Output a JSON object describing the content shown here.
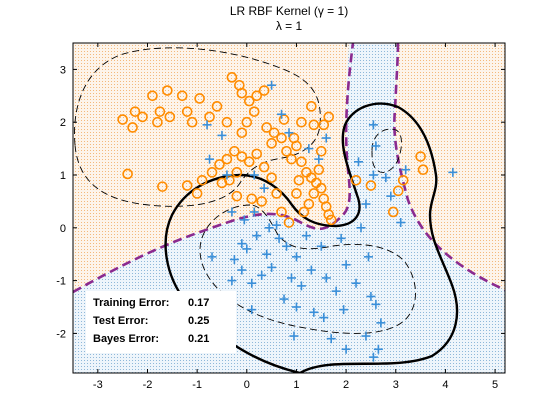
{
  "chart_data": {
    "type": "scatter",
    "title": "LR RBF Kernel (γ = 1)",
    "subtitle": "λ = 1",
    "xlim": [
      -3.5,
      5.2
    ],
    "ylim": [
      -2.75,
      3.5
    ],
    "xticks": [
      -3,
      -2,
      -1,
      0,
      1,
      2,
      3,
      4,
      5
    ],
    "yticks": [
      -2,
      -1,
      0,
      1,
      2,
      3
    ],
    "grid": false,
    "legend": "none",
    "colors": {
      "class_orange": "#ff8c00",
      "class_blue": "#3a8fd9",
      "region_orange": "#fdebd6",
      "region_blue": "#d6e6f3",
      "decision_boundary": "#000000",
      "bayes_boundary": "#8b2a8f"
    },
    "series": [
      {
        "marker": "circle",
        "color": "#ff8c00",
        "points": [
          [
            -2.4,
            1.02
          ],
          [
            -2.5,
            2.05
          ],
          [
            -2.25,
            2.2
          ],
          [
            -2.3,
            1.9
          ],
          [
            -2.1,
            2.1
          ],
          [
            -1.9,
            2.5
          ],
          [
            -1.8,
            2.0
          ],
          [
            -1.75,
            2.2
          ],
          [
            -1.6,
            2.6
          ],
          [
            -1.55,
            2.1
          ],
          [
            -1.7,
            0.78
          ],
          [
            -1.3,
            2.5
          ],
          [
            -1.2,
            2.2
          ],
          [
            -1.1,
            2.0
          ],
          [
            -0.95,
            2.45
          ],
          [
            -0.75,
            2.1
          ],
          [
            -0.6,
            2.3
          ],
          [
            -0.4,
            2.0
          ],
          [
            -0.3,
            2.85
          ],
          [
            -0.15,
            2.7
          ],
          [
            -0.1,
            2.55
          ],
          [
            0.05,
            2.4
          ],
          [
            0.2,
            2.5
          ],
          [
            0.35,
            2.6
          ],
          [
            0.15,
            2.2
          ],
          [
            0.0,
            2.0
          ],
          [
            -0.1,
            1.8
          ],
          [
            -0.25,
            1.45
          ],
          [
            -0.4,
            1.3
          ],
          [
            -0.55,
            1.2
          ],
          [
            -0.7,
            1.05
          ],
          [
            -0.9,
            0.9
          ],
          [
            -1.2,
            0.8
          ],
          [
            -0.35,
            0.9
          ],
          [
            -0.2,
            1.05
          ],
          [
            -0.1,
            1.35
          ],
          [
            0.05,
            1.25
          ],
          [
            0.2,
            1.4
          ],
          [
            0.35,
            1.15
          ],
          [
            0.5,
            1.6
          ],
          [
            0.55,
            1.8
          ],
          [
            0.7,
            1.7
          ],
          [
            0.8,
            1.45
          ],
          [
            0.9,
            1.3
          ],
          [
            1.0,
            1.55
          ],
          [
            1.1,
            1.25
          ],
          [
            1.2,
            1.05
          ],
          [
            1.3,
            0.95
          ],
          [
            1.4,
            0.85
          ],
          [
            1.5,
            0.75
          ],
          [
            1.55,
            0.55
          ],
          [
            1.6,
            0.4
          ],
          [
            1.65,
            0.25
          ],
          [
            1.7,
            0.15
          ],
          [
            1.45,
            1.1
          ],
          [
            1.35,
            0.65
          ],
          [
            1.25,
            0.45
          ],
          [
            1.15,
            0.3
          ],
          [
            1.05,
            0.9
          ],
          [
            0.95,
            1.7
          ],
          [
            1.1,
            2.0
          ],
          [
            0.75,
            2.05
          ],
          [
            1.35,
            1.95
          ],
          [
            1.55,
            1.95
          ],
          [
            1.3,
            2.3
          ],
          [
            1.65,
            2.1
          ],
          [
            1.5,
            1.45
          ],
          [
            2.2,
            0.9
          ],
          [
            2.5,
            0.8
          ],
          [
            2.95,
            0.3
          ],
          [
            3.05,
            0.7
          ],
          [
            3.15,
            0.9
          ],
          [
            3.5,
            1.35
          ],
          [
            3.55,
            1.1
          ],
          [
            -0.2,
            0.6
          ],
          [
            0.1,
            0.55
          ],
          [
            0.3,
            0.5
          ],
          [
            0.6,
            0.65
          ],
          [
            0.7,
            0.3
          ],
          [
            0.85,
            0.1
          ],
          [
            -0.5,
            0.85
          ],
          [
            -1.0,
            0.65
          ],
          [
            0.4,
            1.9
          ],
          [
            1.0,
            0.65
          ],
          [
            0.5,
            0.95
          ]
        ]
      },
      {
        "marker": "plus",
        "color": "#3a8fd9",
        "points": [
          [
            -0.8,
            1.95
          ],
          [
            -0.5,
            1.75
          ],
          [
            -0.75,
            1.3
          ],
          [
            -0.3,
            0.3
          ],
          [
            -0.05,
            0.15
          ],
          [
            0.15,
            0.3
          ],
          [
            0.45,
            0.0
          ],
          [
            0.6,
            0.05
          ],
          [
            0.5,
            2.7
          ],
          [
            0.7,
            2.15
          ],
          [
            0.85,
            1.8
          ],
          [
            1.25,
            1.5
          ],
          [
            1.45,
            1.3
          ],
          [
            1.6,
            1.7
          ],
          [
            2.25,
            1.25
          ],
          [
            2.55,
            1.0
          ],
          [
            2.6,
            1.55
          ],
          [
            2.55,
            1.95
          ],
          [
            2.8,
            0.95
          ],
          [
            3.2,
            1.1
          ],
          [
            4.15,
            1.05
          ],
          [
            2.4,
            0.45
          ],
          [
            2.9,
            0.6
          ],
          [
            3.1,
            0.1
          ],
          [
            -0.1,
            -0.3
          ],
          [
            -0.7,
            -0.55
          ],
          [
            -0.25,
            -0.6
          ],
          [
            0.0,
            -0.4
          ],
          [
            0.2,
            -0.15
          ],
          [
            0.4,
            -0.5
          ],
          [
            0.5,
            -0.75
          ],
          [
            0.3,
            -0.9
          ],
          [
            0.1,
            -1.05
          ],
          [
            -0.1,
            -0.8
          ],
          [
            0.8,
            -0.35
          ],
          [
            1.0,
            -0.55
          ],
          [
            0.9,
            -0.95
          ],
          [
            1.1,
            -1.1
          ],
          [
            1.3,
            -0.8
          ],
          [
            1.5,
            -0.35
          ],
          [
            1.6,
            -0.95
          ],
          [
            1.8,
            -1.2
          ],
          [
            2.0,
            -0.7
          ],
          [
            2.2,
            -1.05
          ],
          [
            2.45,
            -0.55
          ],
          [
            2.5,
            -1.3
          ],
          [
            2.6,
            -1.45
          ],
          [
            2.7,
            -1.8
          ],
          [
            1.95,
            -1.55
          ],
          [
            1.0,
            -1.5
          ],
          [
            0.75,
            -1.35
          ],
          [
            1.35,
            -1.6
          ],
          [
            2.4,
            -2.05
          ],
          [
            2.65,
            -2.3
          ],
          [
            1.7,
            -2.1
          ],
          [
            0.95,
            -2.05
          ],
          [
            -0.3,
            -1.0
          ],
          [
            0.65,
            -0.2
          ],
          [
            1.2,
            -0.15
          ],
          [
            1.9,
            -0.2
          ],
          [
            2.3,
            0.0
          ],
          [
            0.35,
            0.75
          ],
          [
            0.15,
            1.0
          ],
          [
            -0.4,
            1.0
          ],
          [
            0.1,
            -1.55
          ],
          [
            1.55,
            -1.7
          ],
          [
            2.0,
            -2.3
          ],
          [
            2.55,
            -2.45
          ]
        ]
      }
    ],
    "error_box": [
      {
        "label": "Training Error:",
        "value": "0.17"
      },
      {
        "label": "Test Error:",
        "value": "0.25"
      },
      {
        "label": "Bayes Error:",
        "value": "0.21"
      }
    ]
  }
}
